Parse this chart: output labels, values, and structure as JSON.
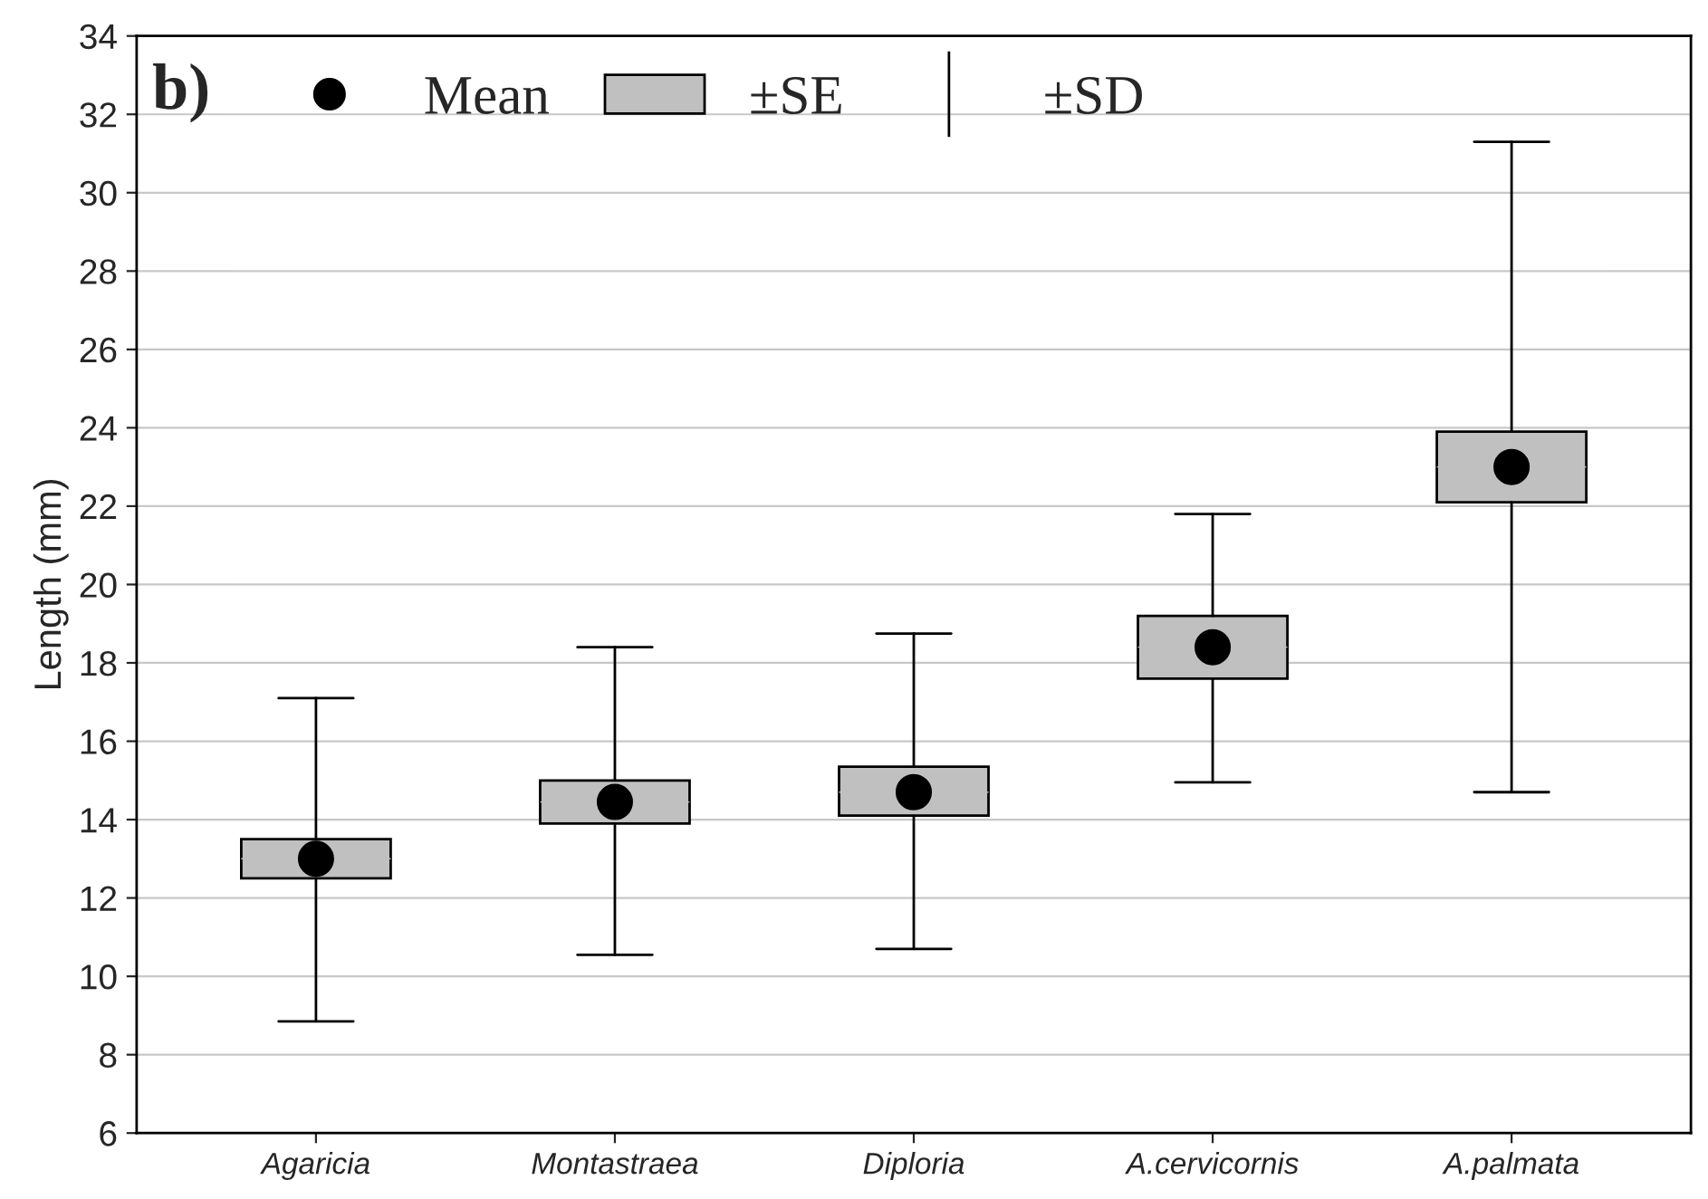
{
  "chart_data": {
    "type": "box",
    "ylabel": "Length (mm)",
    "categories": [
      "Agaricia",
      "Montastraea",
      "Diploria",
      "A.cervicornis",
      "A.palmata"
    ],
    "series": [
      {
        "name": "Mean",
        "type": "scatter",
        "color": "#000000",
        "marker": "circle",
        "values": [
          13.0,
          14.45,
          14.7,
          18.4,
          23.0
        ]
      },
      {
        "name": "±SE",
        "color": "#c0c0c0",
        "boxes": [
          {
            "low": 8.85,
            "q1": 12.5,
            "median": 13.0,
            "q3": 13.5,
            "high": 17.1
          },
          {
            "low": 10.55,
            "q1": 13.9,
            "median": 14.45,
            "q3": 15.0,
            "high": 18.4
          },
          {
            "low": 10.7,
            "q1": 14.1,
            "median": 14.7,
            "q3": 15.35,
            "high": 18.75
          },
          {
            "low": 14.95,
            "q1": 17.6,
            "median": 18.4,
            "q3": 19.2,
            "high": 21.8
          },
          {
            "low": 14.7,
            "q1": 22.1,
            "median": 23.0,
            "q3": 23.9,
            "high": 31.3
          }
        ]
      }
    ],
    "annotations": [
      "b)",
      "±SD"
    ],
    "ylim": [
      6,
      34
    ],
    "yticks": [
      6,
      8,
      10,
      12,
      14,
      16,
      18,
      20,
      22,
      24,
      26,
      28,
      30,
      32,
      34
    ],
    "grid": "y",
    "legend": "top left"
  }
}
